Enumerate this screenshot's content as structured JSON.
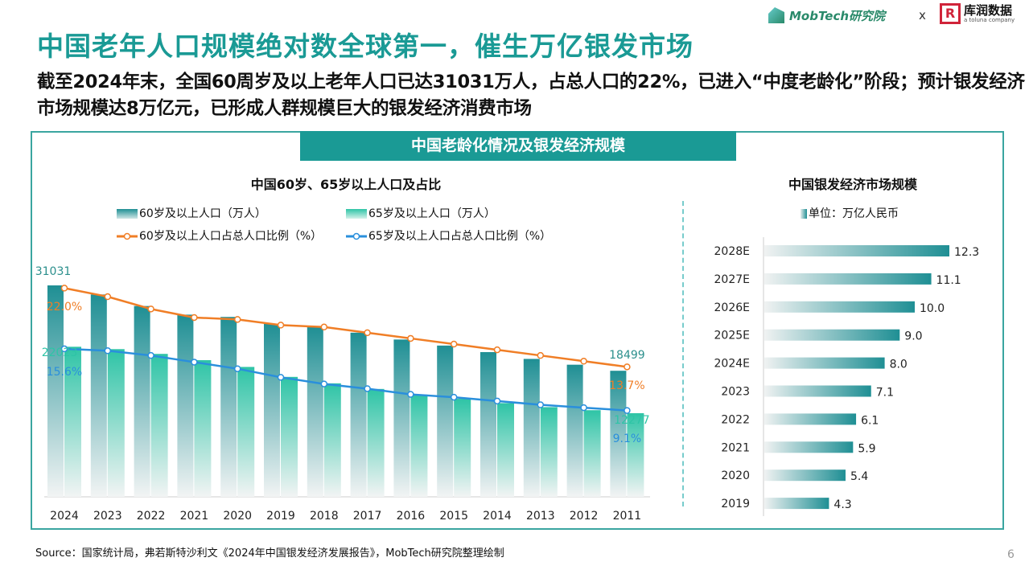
{
  "header": {
    "logo_text": "MobTech研究院",
    "separator": "x",
    "partner_logo_text": "库润数据",
    "partner_tagline": "a toluna company"
  },
  "title": "中国老年人口规模绝对数全球第一，催生万亿银发市场",
  "subtitle": "截至2024年末，全国60周岁及以上老年人口已达31031万人，占总人口的22%，已进入“中度老龄化”阶段；预计银发经济市场规模达8万亿元，已形成人群规模巨大的银发经济消费市场",
  "section_title": "中国老龄化情况及银发经济规模",
  "source": "Source：国家统计局，弗若斯特沙利文《2024年中国银发经济发展报告》，MobTech研究院整理绘制",
  "page_number": "6",
  "colors": {
    "accent": "#1a9a95",
    "bar60": "#1f8f94",
    "bar65": "#2ec4a6",
    "line60": "#f07e26",
    "line65": "#2a8fdc"
  },
  "chart_data": [
    {
      "type": "bar+line",
      "title": "中国60岁、65岁以上人口及占比",
      "categories": [
        "2024",
        "2023",
        "2022",
        "2021",
        "2020",
        "2019",
        "2018",
        "2017",
        "2016",
        "2015",
        "2014",
        "2013",
        "2012",
        "2011"
      ],
      "series": [
        {
          "name": "60岁及以上人口（万人）",
          "type": "bar",
          "values": [
            31031,
            29697,
            28004,
            26736,
            26402,
            25388,
            24949,
            24090,
            23086,
            22200,
            21242,
            20243,
            19390,
            18499
          ]
        },
        {
          "name": "65岁及以上人口（万人）",
          "type": "bar",
          "values": [
            22023,
            21676,
            20978,
            20056,
            19064,
            17603,
            16658,
            15831,
            15003,
            14386,
            13755,
            13161,
            12714,
            12277
          ]
        },
        {
          "name": "60岁及以上人口占总人口比例（%）",
          "type": "line",
          "values": [
            22.0,
            21.1,
            19.8,
            18.9,
            18.7,
            18.1,
            17.9,
            17.3,
            16.7,
            16.1,
            15.5,
            14.9,
            14.3,
            13.7
          ]
        },
        {
          "name": "65岁及以上人口占总人口比例（%）",
          "type": "line",
          "values": [
            15.6,
            15.4,
            14.9,
            14.2,
            13.5,
            12.6,
            11.9,
            11.4,
            10.8,
            10.5,
            10.1,
            9.7,
            9.4,
            9.1
          ]
        }
      ],
      "data_labels": {
        "bar60_first": "31031",
        "bar60_last": "18499",
        "bar65_first": "22023",
        "bar65_last": "12277",
        "line60_first": "22.0%",
        "line60_last": "13.7%",
        "line65_first": "15.6%",
        "line65_last": "9.1%"
      },
      "legend": "top"
    },
    {
      "type": "bar",
      "orientation": "horizontal",
      "title": "中国银发经济市场规模",
      "legend": "单位：万亿人民币",
      "categories": [
        "2028E",
        "2027E",
        "2026E",
        "2025E",
        "2024E",
        "2023",
        "2022",
        "2021",
        "2020",
        "2019"
      ],
      "values": [
        12.3,
        11.1,
        10.0,
        9.0,
        8.0,
        7.1,
        6.1,
        5.9,
        5.4,
        4.3
      ],
      "value_labels": [
        "12.3",
        "11.1",
        "10.0",
        "9.0",
        "8.0",
        "7.1",
        "6.1",
        "5.9",
        "5.4",
        "4.3"
      ]
    }
  ]
}
